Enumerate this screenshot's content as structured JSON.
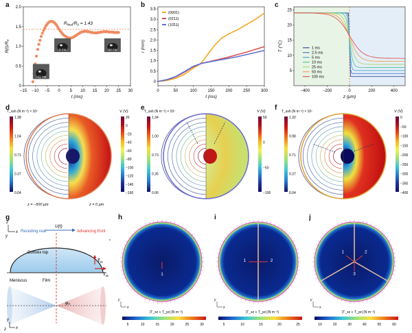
{
  "panels": {
    "a": "a",
    "b": "b",
    "c": "c",
    "d": "d",
    "e": "e",
    "f": "f",
    "g": "g",
    "h": "h",
    "i": "i",
    "j": "j"
  },
  "chart_data": [
    {
      "id": "a",
      "type": "scatter",
      "xlabel": "t (ms)",
      "ylabel": "R(t)/R₀",
      "xlim": [
        -15,
        30
      ],
      "ylim": [
        0,
        2.0
      ],
      "xticks": [
        "-15",
        "-10",
        "-5",
        "0",
        "5",
        "10",
        "15",
        "20",
        "25",
        "30"
      ],
      "yticks": [
        "0",
        "0.5",
        "1.0",
        "1.5",
        "2.0"
      ],
      "annotation": "R_final/R₀ = 1.43",
      "annotation_parts": {
        "r": "R",
        "sub": "final",
        "mid": "/R",
        "sub0": "0",
        "value": " = 1.43"
      },
      "reference_line_y": 1.43,
      "color": "#f08a60",
      "x": [
        -11,
        -10.5,
        -10,
        -9.5,
        -9,
        -8.5,
        -8,
        -7.5,
        -7,
        -6.5,
        -6,
        -5.5,
        -5,
        -4.5,
        -4,
        -3.5,
        -3,
        -2.5,
        -2,
        -1.5,
        -1,
        -0.5,
        0,
        0.5,
        1,
        1.5,
        2,
        2.5,
        3,
        3.5,
        4,
        4.5,
        5,
        5.5,
        6,
        6.5,
        7,
        7.5,
        8,
        8.5,
        9,
        9.5,
        10,
        10.5,
        11,
        11.5,
        12,
        12.5,
        13,
        13.5,
        14,
        14.5,
        15,
        15.5,
        16,
        16.5,
        17,
        17.5,
        18,
        18.5,
        19,
        19.5,
        20,
        20.5,
        21,
        21.5,
        22,
        22.5,
        23,
        23.5,
        24,
        24.5,
        25
      ],
      "y": [
        0.1,
        0.3,
        0.55,
        0.75,
        0.92,
        1.05,
        1.15,
        1.25,
        1.33,
        1.4,
        1.46,
        1.52,
        1.56,
        1.6,
        1.62,
        1.63,
        1.63,
        1.62,
        1.6,
        1.57,
        1.53,
        1.48,
        1.43,
        1.39,
        1.35,
        1.31,
        1.28,
        1.26,
        1.24,
        1.22,
        1.21,
        1.21,
        1.21,
        1.22,
        1.23,
        1.25,
        1.27,
        1.29,
        1.31,
        1.33,
        1.35,
        1.36,
        1.37,
        1.38,
        1.38,
        1.38,
        1.37,
        1.37,
        1.36,
        1.35,
        1.35,
        1.34,
        1.34,
        1.34,
        1.34,
        1.35,
        1.35,
        1.36,
        1.36,
        1.37,
        1.37,
        1.37,
        1.37,
        1.37,
        1.36,
        1.36,
        1.36,
        1.36,
        1.35,
        1.35,
        1.35,
        1.35,
        1.35
      ],
      "insets": [
        "0 ms",
        "24 ms",
        "−11 ms"
      ]
    },
    {
      "id": "b",
      "type": "line",
      "xlabel": "t (ms)",
      "ylabel": "r (mm)",
      "xlim": [
        0,
        300
      ],
      "ylim": [
        -0.2,
        3.6
      ],
      "xticks": [
        "0",
        "50",
        "100",
        "150",
        "200",
        "250",
        "300"
      ],
      "yticks": [
        "0",
        "0.5",
        "1.0",
        "1.5",
        "2.0",
        "2.5",
        "3.0",
        "3.5"
      ],
      "series": [
        {
          "name": "(0001)",
          "color": "#f5a623",
          "x": [
            0,
            25,
            50,
            75,
            100,
            115,
            125,
            140,
            160,
            180,
            200,
            225,
            250,
            275,
            300
          ],
          "y": [
            0,
            0.05,
            0.15,
            0.35,
            0.65,
            0.8,
            0.95,
            1.3,
            1.75,
            2.1,
            2.3,
            2.5,
            2.75,
            3.0,
            3.3
          ]
        },
        {
          "name": "(01̄11)",
          "color": "#d9534f",
          "x": [
            0,
            25,
            50,
            75,
            100,
            125,
            150,
            175,
            200,
            225,
            250,
            275,
            300
          ],
          "y": [
            0,
            0.08,
            0.22,
            0.45,
            0.72,
            0.88,
            0.98,
            1.08,
            1.18,
            1.3,
            1.42,
            1.55,
            1.68
          ]
        },
        {
          "name": "(10̄11)",
          "color": "#5b6fd6",
          "x": [
            0,
            25,
            50,
            75,
            100,
            125,
            150,
            175,
            200,
            225,
            250,
            275,
            300
          ],
          "y": [
            0,
            0.09,
            0.24,
            0.48,
            0.74,
            0.88,
            0.96,
            1.04,
            1.12,
            1.2,
            1.3,
            1.4,
            1.5
          ]
        }
      ]
    },
    {
      "id": "c",
      "type": "line",
      "xlabel": "z (μm)",
      "ylabel": "T (°C)",
      "xlim": [
        -500,
        500
      ],
      "ylim": [
        0,
        26
      ],
      "xticks": [
        "-400",
        "-200",
        "0",
        "200",
        "400"
      ],
      "yticks": [
        "5",
        "10",
        "15",
        "20",
        "25"
      ],
      "series": [
        {
          "name": "1 ms",
          "color": "#3a4a9a"
        },
        {
          "name": "2.5 ms",
          "color": "#4a7ac8"
        },
        {
          "name": "5 ms",
          "color": "#4aa8c8"
        },
        {
          "name": "10 ms",
          "color": "#5ec29a"
        },
        {
          "name": "25 ms",
          "color": "#a8d870"
        },
        {
          "name": "50 ms",
          "color": "#f0a060"
        },
        {
          "name": "100 ms",
          "color": "#e05050"
        }
      ]
    }
  ],
  "d": {
    "colorbar1_title": "T_ssh (N m⁻²) × 10⁷",
    "colorbar1_ticks": [
      "1.38",
      "1.04",
      "0.71",
      "0.37",
      "0.04"
    ],
    "colorbar2_title": "V (V)",
    "colorbar2_ticks": [
      "20",
      "0",
      "−20",
      "−40",
      "−60",
      "−80",
      "−100",
      "−120",
      "−140",
      "−160"
    ],
    "left_label": "z = −500 μm",
    "right_label": "z = 0 μm"
  },
  "e": {
    "colorbar1_title": "T_ssh (N m⁻²) × 10⁷",
    "colorbar1_ticks": [
      "1.34",
      "1.00",
      "0.73",
      "0.35",
      "0.06"
    ],
    "colorbar2_title": "V (V)",
    "colorbar2_ticks": [
      "50",
      "0",
      "−50",
      "−100"
    ]
  },
  "f": {
    "colorbar1_title": "T_ssh (N m⁻²) × 10⁷",
    "colorbar1_ticks": [
      "1.32",
      "0.98",
      "0.71",
      "0.37",
      "0.04"
    ],
    "colorbar2_title": "V (V)",
    "colorbar2_ticks": [
      "0",
      "−50",
      "−100",
      "−150",
      "−200",
      "−250",
      "−300",
      "−350",
      "−400"
    ]
  },
  "g": {
    "u_label": "U(t)",
    "receding": "Receding rear",
    "advancing": "Advancing front",
    "convex_top": "Convex top",
    "meniscus": "Meniscus",
    "film": "Film",
    "tau_xz": "T",
    "tau_xz_sub": "xz",
    "tau_zz": "T",
    "tau_zz_sub": "zz",
    "phi": "φ₀",
    "axis_x": "x",
    "axis_y": "y",
    "axis_z": "z"
  },
  "h": {
    "colorbar_label": "|T_xz + T_yz| (N m⁻²)",
    "ticks": [
      "5",
      "10",
      "15",
      "20",
      "25",
      "30"
    ],
    "markers": [
      "1"
    ]
  },
  "i": {
    "colorbar_label": "|T_xz + T_yz| (N m⁻²)",
    "ticks": [
      "5",
      "10",
      "15",
      "20",
      "25"
    ],
    "markers": [
      "1",
      "2"
    ]
  },
  "j": {
    "colorbar_label": "|T_xz + T_yz| (N m⁻²)",
    "ticks": [
      "10",
      "20",
      "30",
      "40",
      "50",
      "60"
    ],
    "markers": [
      "1",
      "2",
      "3"
    ]
  }
}
